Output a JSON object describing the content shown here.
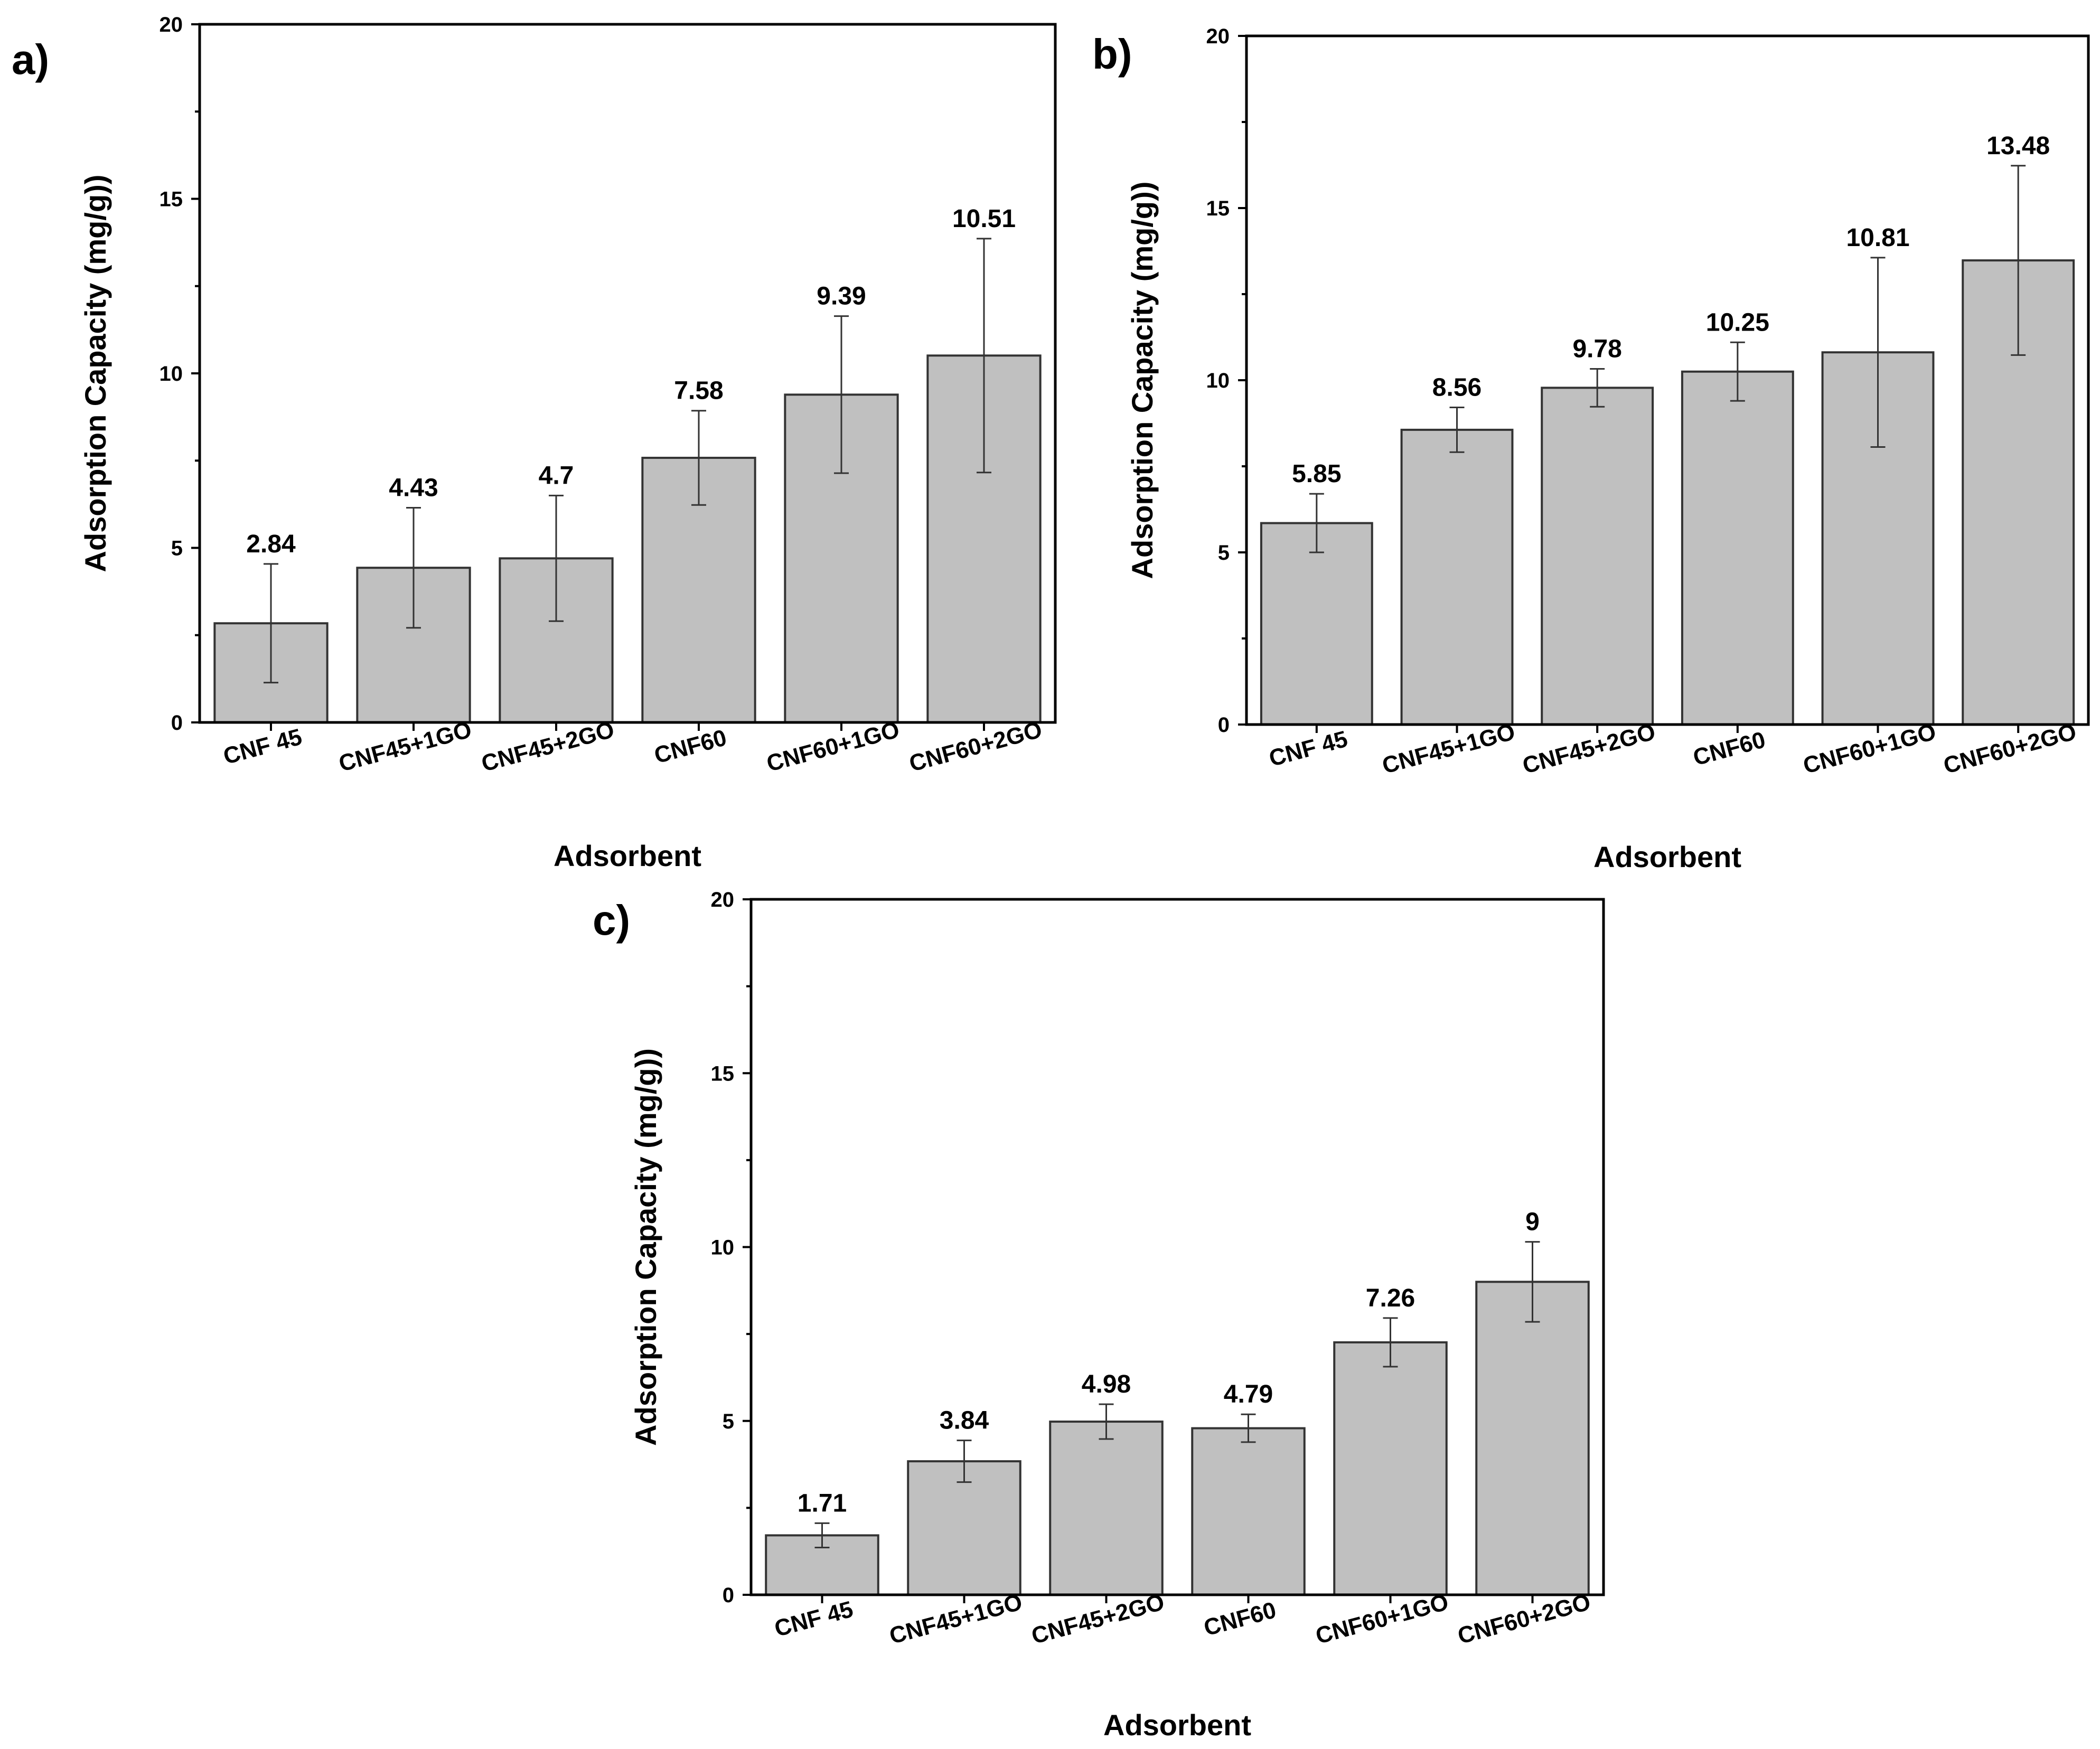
{
  "chart_data": [
    {
      "type": "bar",
      "panel_label": "a)",
      "categories": [
        "CNF 45",
        "CNF45+1GO",
        "CNF45+2GO",
        "CNF60",
        "CNF60+1GO",
        "CNF60+2GO"
      ],
      "values": [
        2.84,
        4.43,
        4.7,
        7.58,
        9.39,
        10.51
      ],
      "value_labels": [
        "2.84",
        "4.43",
        "4.7",
        "7.58",
        "9.39",
        "10.51"
      ],
      "errors": [
        1.7,
        1.72,
        1.8,
        1.35,
        2.25,
        3.35
      ],
      "xlabel": "Adsorbent",
      "ylabel": "Adsorption Capacity (mg/g))",
      "ylim": [
        0,
        20
      ],
      "yticks": [
        0,
        5,
        10,
        15,
        20
      ],
      "bar_color": "#c0c0c0"
    },
    {
      "type": "bar",
      "panel_label": "b)",
      "categories": [
        "CNF 45",
        "CNF45+1GO",
        "CNF45+2GO",
        "CNF60",
        "CNF60+1GO",
        "CNF60+2GO"
      ],
      "values": [
        5.85,
        8.56,
        9.78,
        10.25,
        10.81,
        13.48
      ],
      "value_labels": [
        "5.85",
        "8.56",
        "9.78",
        "10.25",
        "10.81",
        "13.48"
      ],
      "errors": [
        0.85,
        0.65,
        0.55,
        0.85,
        2.75,
        2.75
      ],
      "xlabel": "Adsorbent",
      "ylabel": "Adsorption Capacity (mg/g))",
      "ylim": [
        0,
        20
      ],
      "yticks": [
        0,
        5,
        10,
        15,
        20
      ],
      "bar_color": "#c0c0c0"
    },
    {
      "type": "bar",
      "panel_label": "c)",
      "categories": [
        "CNF 45",
        "CNF45+1GO",
        "CNF45+2GO",
        "CNF60",
        "CNF60+1GO",
        "CNF60+2GO"
      ],
      "values": [
        1.71,
        3.84,
        4.98,
        4.79,
        7.26,
        9
      ],
      "value_labels": [
        "1.71",
        "3.84",
        "4.98",
        "4.79",
        "7.26",
        "9"
      ],
      "errors": [
        0.35,
        0.6,
        0.5,
        0.4,
        0.7,
        1.15
      ],
      "xlabel": "Adsorbent",
      "ylabel": "Adsorption Capacity (mg/g))",
      "ylim": [
        0,
        20
      ],
      "yticks": [
        0,
        5,
        10,
        15,
        20
      ],
      "bar_color": "#c0c0c0"
    }
  ]
}
